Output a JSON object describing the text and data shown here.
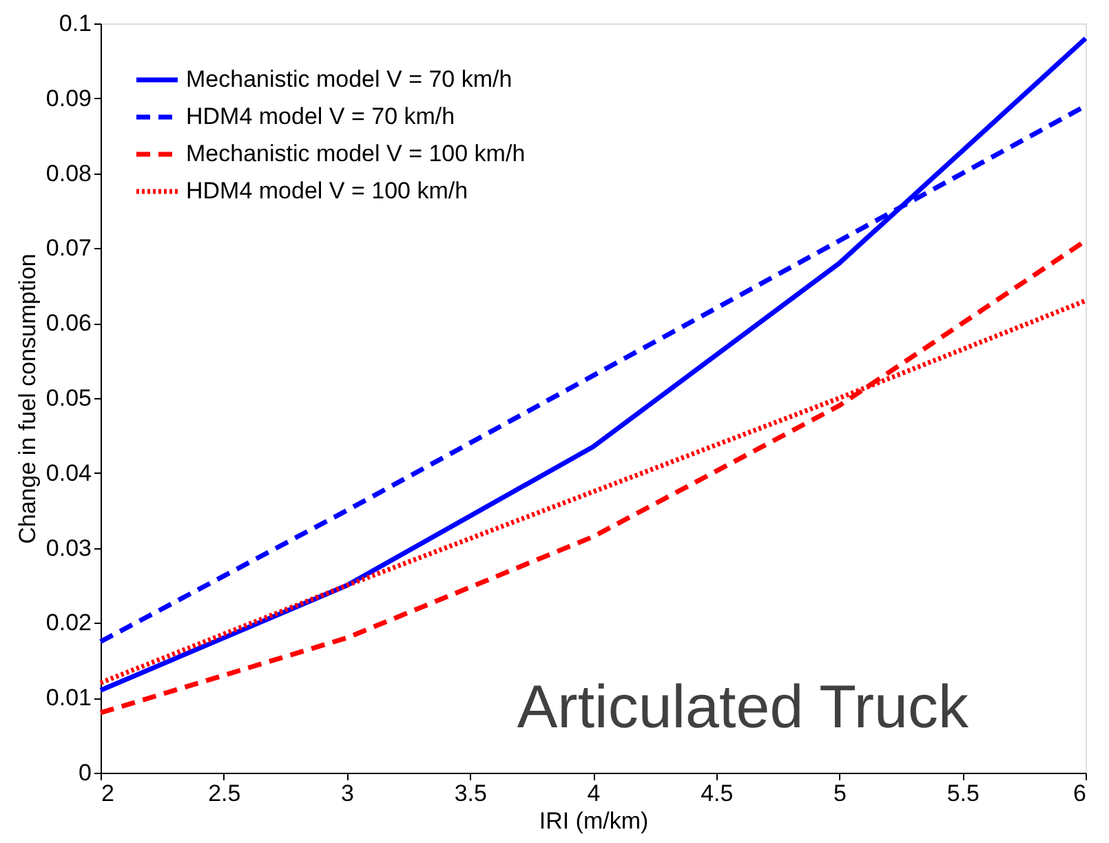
{
  "chart_data": {
    "type": "line",
    "xlabel": "IRI (m/km)",
    "ylabel": "Change in fuel consumption",
    "x": [
      2,
      3,
      4,
      5,
      6
    ],
    "series": [
      {
        "name": "Mechanistic model V = 70 km/h",
        "color": "#0000ff",
        "line_style": "solid",
        "values": [
          0.011,
          0.025,
          0.0435,
          0.068,
          0.098
        ]
      },
      {
        "name": "HDM4 model V = 70 km/h",
        "color": "#0000ff",
        "line_style": "dashed",
        "values": [
          0.0175,
          0.035,
          0.053,
          0.071,
          0.089
        ]
      },
      {
        "name": "Mechanistic model V = 100 km/h",
        "color": "#ff0000",
        "line_style": "dashed",
        "values": [
          0.008,
          0.018,
          0.0315,
          0.049,
          0.071
        ]
      },
      {
        "name": "HDM4 model V = 100 km/h",
        "color": "#ff0000",
        "line_style": "dotted",
        "values": [
          0.012,
          0.025,
          0.0375,
          0.05,
          0.063
        ]
      }
    ],
    "xlim": [
      2,
      6
    ],
    "xticks": [
      2,
      2.5,
      3,
      3.5,
      4,
      4.5,
      5,
      5.5,
      6
    ],
    "ylim": [
      0,
      0.1
    ],
    "yticks": [
      0,
      0.01,
      0.02,
      0.03,
      0.04,
      0.05,
      0.06,
      0.07,
      0.08,
      0.09,
      0.1
    ],
    "grid": false,
    "legend": "top left",
    "marker": "none",
    "annotations": [
      "Articulated Truck"
    ]
  }
}
